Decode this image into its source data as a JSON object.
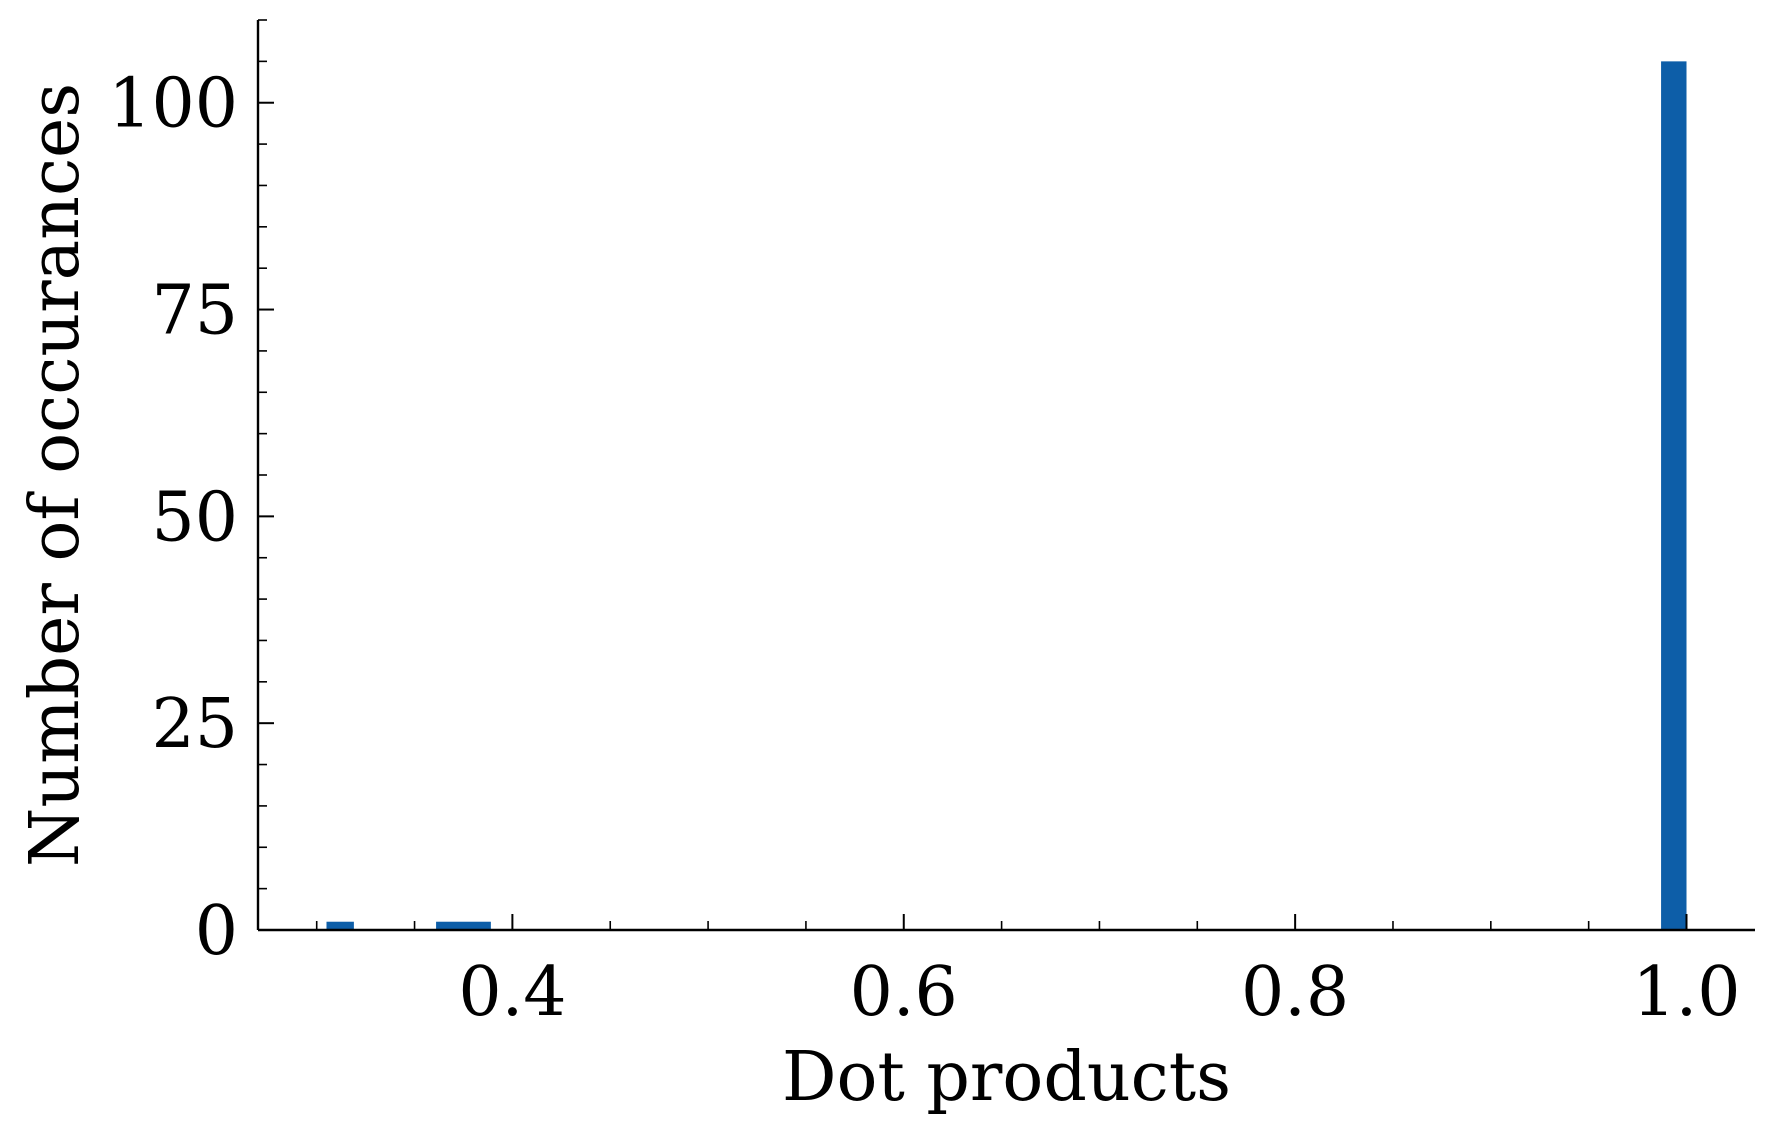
{
  "chart_data": {
    "type": "bar",
    "title": "",
    "xlabel": "Dot products",
    "ylabel": "Number of occurances",
    "xlim": [
      0.27,
      1.035
    ],
    "ylim": [
      0,
      110
    ],
    "grid": false,
    "legend": null,
    "bar_color": "#0d5ea8",
    "xticks": [
      0.4,
      0.6,
      0.8,
      1.0
    ],
    "xtick_labels": [
      "0.4",
      "0.6",
      "0.8",
      "1.0"
    ],
    "yticks": [
      0,
      25,
      50,
      75,
      100
    ],
    "ytick_labels": [
      "0",
      "25",
      "50",
      "75",
      "100"
    ],
    "x_minor_step": 0.05,
    "y_minor_step": 5,
    "bins": [
      {
        "x0": 0.305,
        "x1": 0.319,
        "value": 1
      },
      {
        "x0": 0.361,
        "x1": 0.389,
        "value": 1
      },
      {
        "x0": 0.987,
        "x1": 1.0,
        "value": 105
      }
    ]
  }
}
